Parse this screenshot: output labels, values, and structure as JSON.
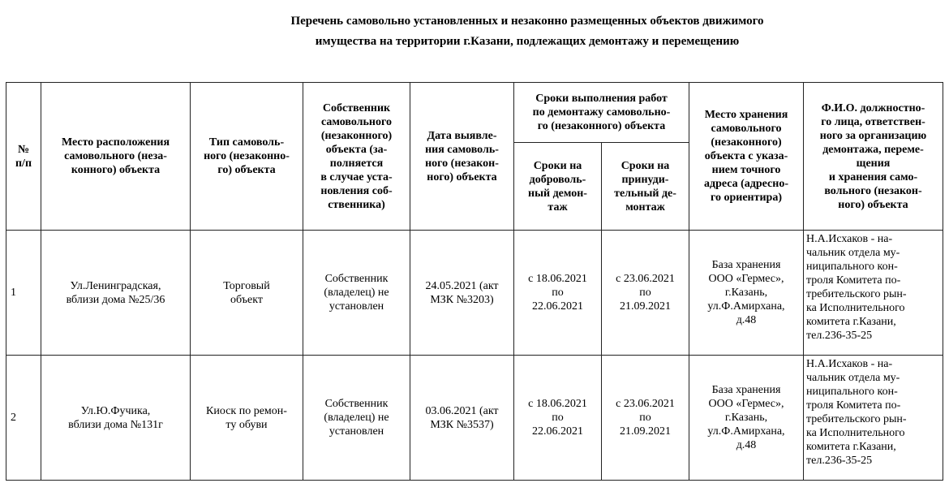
{
  "document": {
    "title": "Перечень самовольно установленных и незаконно размещенных объектов движимого\nимущества на территории г.Казани, подлежащих демонтажу и перемещению",
    "table": {
      "headers": {
        "num": "№\nп/п",
        "location": "Место расположения\nсамовольного (неза-\nконного) объекта",
        "type": "Тип самоволь-\nного (незаконно-\nго) объекта",
        "owner": "Собственник\nсамовольного\n(незаконного)\nобъекта (за-\nполняется\nв случае уста-\nновления соб-\nственника)",
        "date": "Дата выявле-\nния самоволь-\nного (незакон-\nного) объекта",
        "terms_group": "Сроки выполнения работ\nпо демонтажу самовольно-\nго (незаконного) объекта",
        "voluntary": "Сроки на\nдоброволь-\nный демон-\nтаж",
        "forced": "Сроки на\nпринуди-\nтельный де-\nмонтаж",
        "storage": "Место хранения\nсамовольного\n(незаконного)\nобъекта с указа-\nнием точного\nадреса (адресно-\nго ориентира)",
        "responsible": "Ф.И.О. должностно-\nго лица, ответствен-\nного за организацию\nдемонтажа, переме-\nщения\nи хранения само-\nвольного (незакон-\nного) объекта"
      },
      "rows": [
        {
          "num": "1",
          "location": "Ул.Ленинградская,\nвблизи дома №25/36",
          "type": "Торговый\nобъект",
          "owner": "Собственник\n(владелец) не\nустановлен",
          "date": "24.05.2021 (акт\nМЗК №3203)",
          "voluntary": "с 18.06.2021\nпо\n22.06.2021",
          "forced": "с 23.06.2021\nпо\n21.09.2021",
          "storage": "База хранения\nООО «Гермес»,\nг.Казань,\nул.Ф.Амирхана,\nд.48",
          "responsible": "Н.А.Исхаков - на-\nчальник отдела му-\nниципального кон-\nтроля Комитета по-\nтребительского рын-\nка Исполнительного\nкомитета г.Казани,\nтел.236-35-25"
        },
        {
          "num": "2",
          "location": "Ул.Ю.Фучика,\nвблизи дома №131г",
          "type": "Киоск по ремон-\nту обуви",
          "owner": "Собственник\n(владелец) не\nустановлен",
          "date": "03.06.2021 (акт\nМЗК №3537)",
          "voluntary": "с 18.06.2021\nпо\n22.06.2021",
          "forced": "с 23.06.2021\nпо\n21.09.2021",
          "storage": "База хранения\nООО «Гермес»,\nг.Казань,\nул.Ф.Амирхана,\nд.48",
          "responsible": "Н.А.Исхаков - на-\nчальник отдела му-\nниципального кон-\nтроля Комитета по-\nтребительского рын-\nка Исполнительного\nкомитета г.Казани,\nтел.236-35-25"
        }
      ]
    }
  }
}
